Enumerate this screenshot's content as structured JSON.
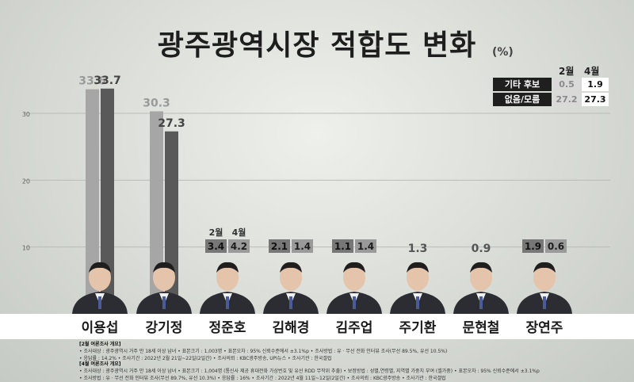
{
  "title": "광주광역시장 적합도 변화",
  "unit": "(%)",
  "legend": {
    "months": [
      "2월",
      "4월"
    ],
    "rows": [
      {
        "label": "기타 후보",
        "feb": "0.5",
        "apr": "1.9"
      },
      {
        "label": "없음/모름",
        "feb": "27.2",
        "apr": "27.3"
      }
    ]
  },
  "small_labels": {
    "feb": "2월",
    "apr": "4월"
  },
  "colors": {
    "feb": "#a6a6a6",
    "apr": "#595959",
    "feb_box": "#777777",
    "apr_box": "#9a9a9a"
  },
  "chart_data": {
    "type": "bar",
    "yticks": [
      10,
      20,
      30
    ],
    "ylim": [
      0,
      36
    ],
    "categories": [
      "이용섭",
      "강기정",
      "정준호",
      "김해경",
      "김주업",
      "주기환",
      "문현철",
      "장연주"
    ],
    "series": [
      {
        "name": "2월",
        "values": [
          33.6,
          30.3,
          3.4,
          2.1,
          1.1,
          null,
          null,
          1.9
        ]
      },
      {
        "name": "4월",
        "values": [
          33.7,
          27.3,
          4.2,
          1.4,
          1.4,
          1.3,
          0.9,
          0.6
        ]
      }
    ]
  },
  "notes": {
    "feb_title": "[2월 여론조사 개요]",
    "feb_line1": "• 조사대상 : 광주광역시 거주 만 18세 이상 남녀   • 표본크기 : 1,003명   • 표본오차 : 95% 신뢰수준에서 ±3.1%p   • 조사방법 : 유 · 무선 전화 인터뷰 조사(무선 89.5%, 유선 10.5%)",
    "feb_line2": "• 응답률 : 14.2%   • 조사기간 : 2022년 2월 21일~22일(2일간)   • 조사의뢰 : KBC광주방송, UPI뉴스   • 조사기관 : 한국갤럽",
    "apr_title": "[4월 여론조사 개요]",
    "apr_line1": "• 조사대상 : 광주광역시 거주 만 18세 이상 남녀   • 표본크기 : 1,004명 (통신사 제공 휴대전화 가상번호 및 유선 RDD 무작위 추출)   • 보정방법 : 성별,연령별, 지역별 가중치 부여 (셀가중)   • 표본오차 : 95% 신뢰수준에서 ±3.1%p",
    "apr_line2": "• 조사방법 : 유 · 무선 전화 인터뷰 조사(무선 89.7%, 유선 10.3%)   • 응답률 : 16%   • 조사기간 : 2022년 4월 11일~12일(2일간)   • 조사의뢰 : KBC광주방송   • 조사기관 : 한국갤럽"
  }
}
